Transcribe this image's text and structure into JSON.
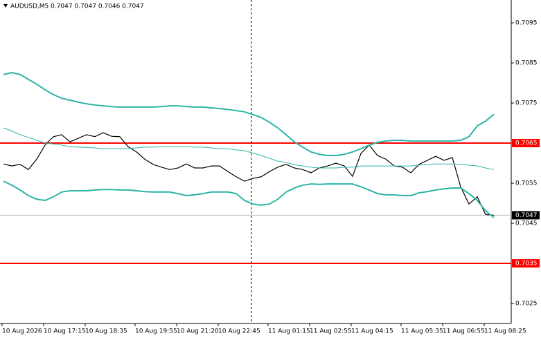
{
  "chart_data": {
    "type": "line",
    "title": "AUDUSD,M5 0.7047 0.7047 0.7046 0.7047",
    "categories": [
      "10 Aug 2026",
      null,
      null,
      null,
      null,
      "10 Aug 17:15",
      null,
      null,
      null,
      null,
      "10 Aug 18:35",
      null,
      null,
      null,
      null,
      null,
      "10 Aug 19:55",
      null,
      null,
      null,
      null,
      "10 Aug 21:20",
      null,
      null,
      null,
      null,
      "10 Aug 22:45",
      null,
      null,
      null,
      null,
      null,
      "11 Aug 01:15",
      null,
      null,
      null,
      null,
      "11 Aug 02:55",
      null,
      null,
      null,
      null,
      "11 Aug 04:15",
      null,
      null,
      null,
      null,
      null,
      "11 Aug 05:35",
      null,
      null,
      null,
      null,
      "11 Aug 06:55",
      null,
      null,
      null,
      null,
      "11 Aug 08:25",
      null
    ],
    "series": [
      {
        "color": "#000000",
        "values": [
          0.70598,
          0.70593,
          0.70597,
          0.70584,
          0.7061,
          0.70645,
          0.70666,
          0.70671,
          0.70653,
          0.70662,
          0.70671,
          0.70666,
          0.70676,
          0.70667,
          0.70666,
          0.70641,
          0.70628,
          0.7061,
          0.70597,
          0.7059,
          0.70584,
          0.70588,
          0.70598,
          0.70588,
          0.70588,
          0.70593,
          0.70593,
          0.70579,
          0.70566,
          0.70555,
          0.70562,
          0.70566,
          0.70579,
          0.7059,
          0.70597,
          0.70588,
          0.70584,
          0.70576,
          0.70588,
          0.70593,
          0.706,
          0.70593,
          0.70567,
          0.70624,
          0.70645,
          0.70619,
          0.7061,
          0.70593,
          0.7059,
          0.70576,
          0.70597,
          0.70607,
          0.70617,
          0.70607,
          0.70614,
          0.70541,
          0.70498,
          0.70516,
          0.70472,
          0.7047
        ]
      },
      {
        "color": "#2bb5a6",
        "values": [
          0.70821,
          0.70826,
          0.70821,
          0.70809,
          0.70797,
          0.70783,
          0.70771,
          0.70762,
          0.70757,
          0.70752,
          0.70748,
          0.70745,
          0.70743,
          0.70741,
          0.7074,
          0.7074,
          0.7074,
          0.7074,
          0.7074,
          0.70741,
          0.70743,
          0.70743,
          0.70741,
          0.7074,
          0.7074,
          0.70738,
          0.70736,
          0.70734,
          0.70731,
          0.70728,
          0.70721,
          0.70714,
          0.70702,
          0.70688,
          0.70671,
          0.70653,
          0.7064,
          0.70628,
          0.70622,
          0.70619,
          0.70619,
          0.70622,
          0.70628,
          0.70636,
          0.70645,
          0.70652,
          0.70655,
          0.70657,
          0.70657,
          0.70655,
          0.70655,
          0.70655,
          0.70655,
          0.70655,
          0.70655,
          0.70657,
          0.70666,
          0.70693,
          0.70705,
          0.70722
        ]
      },
      {
        "color": "#2bb5a6",
        "values": [
          0.70688,
          0.7068,
          0.70671,
          0.70664,
          0.70657,
          0.7065,
          0.70648,
          0.70645,
          0.70641,
          0.7064,
          0.70639,
          0.70638,
          0.70636,
          0.70636,
          0.70636,
          0.70636,
          0.70638,
          0.7064,
          0.7064,
          0.70641,
          0.70641,
          0.70641,
          0.70641,
          0.7064,
          0.7064,
          0.70638,
          0.70636,
          0.70636,
          0.70633,
          0.70631,
          0.70625,
          0.70619,
          0.70612,
          0.70605,
          0.70602,
          0.70596,
          0.70593,
          0.7059,
          0.70588,
          0.70588,
          0.70588,
          0.7059,
          0.7059,
          0.70593,
          0.70593,
          0.70593,
          0.70593,
          0.70593,
          0.70593,
          0.70593,
          0.70595,
          0.70597,
          0.70598,
          0.70598,
          0.70598,
          0.70597,
          0.70595,
          0.70593,
          0.70588,
          0.70584
        ]
      },
      {
        "color": "#2bb5a6",
        "values": [
          0.70555,
          0.70545,
          0.70533,
          0.70519,
          0.7051,
          0.70507,
          0.70516,
          0.70528,
          0.70531,
          0.70531,
          0.70531,
          0.70533,
          0.70534,
          0.70534,
          0.70533,
          0.70533,
          0.70531,
          0.70529,
          0.70528,
          0.70528,
          0.70528,
          0.70524,
          0.70519,
          0.70521,
          0.70524,
          0.70528,
          0.70528,
          0.70528,
          0.70524,
          0.70507,
          0.70498,
          0.70495,
          0.70498,
          0.7051,
          0.70528,
          0.70538,
          0.70545,
          0.70548,
          0.70547,
          0.70548,
          0.70548,
          0.70548,
          0.70548,
          0.70541,
          0.70533,
          0.70524,
          0.70521,
          0.70521,
          0.70519,
          0.70519,
          0.70526,
          0.70529,
          0.70533,
          0.70536,
          0.70538,
          0.70538,
          0.70524,
          0.70507,
          0.70481,
          0.70464
        ]
      }
    ],
    "ylim": [
      0.702,
      0.71007
    ],
    "yticks": [
      0.7025,
      0.7045,
      0.7055,
      0.7075,
      0.7085,
      0.7095
    ],
    "levels": [
      {
        "value": 0.7065,
        "color": "#ff0000"
      },
      {
        "value": 0.7035,
        "color": "#ff0000"
      }
    ],
    "current_price": 0.7047
  }
}
